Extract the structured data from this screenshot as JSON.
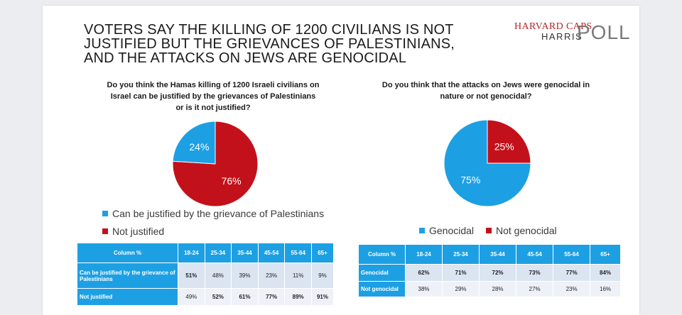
{
  "slide": {
    "title": "VOTERS SAY THE KILLING OF 1200 CIVILIANS IS NOT JUSTIFIED BUT THE GRIEVANCES OF PALESTINIANS, AND THE ATTACKS ON JEWS ARE GENOCIDAL",
    "logo": {
      "line1": "HARVARD CAPS",
      "line2": "HARRIS",
      "word": "POLL",
      "accent": "#b0272d"
    }
  },
  "colors": {
    "blue": "#1da0e3",
    "red": "#c3111b",
    "table_header": "#1da0e3",
    "table_row": "#dbe4f1"
  },
  "left": {
    "question": "Do you think the Hamas killing of 1200 Israeli civilians on Israel can be justified by the grievances of Palestinians or is it not justified?",
    "legend": [
      {
        "label": "Can be justified by the grievance of Palestinians",
        "color": "#1da0e3"
      },
      {
        "label": "Not justified",
        "color": "#c3111b"
      }
    ],
    "table": {
      "corner": "Column %",
      "headers": [
        "18-24",
        "25-34",
        "35-44",
        "45-54",
        "55-64",
        "65+"
      ],
      "rows": [
        {
          "label": "Can be justified by the grievance of Palestinians",
          "values": [
            "51%",
            "48%",
            "39%",
            "23%",
            "11%",
            "9%"
          ],
          "bold": [
            true,
            false,
            false,
            false,
            false,
            false
          ]
        },
        {
          "label": "Not justified",
          "values": [
            "49%",
            "52%",
            "61%",
            "77%",
            "89%",
            "91%"
          ],
          "bold": [
            false,
            true,
            true,
            true,
            true,
            true
          ]
        }
      ]
    }
  },
  "right": {
    "question": "Do you think that the attacks on Jews were genocidal in nature or not genocidal?",
    "legend": [
      {
        "label": "Genocidal",
        "color": "#1da0e3"
      },
      {
        "label": "Not genocidal",
        "color": "#c3111b"
      }
    ],
    "table": {
      "corner": "Column %",
      "headers": [
        "18-24",
        "25-34",
        "35-44",
        "45-54",
        "55-64",
        "65+"
      ],
      "rows": [
        {
          "label": "Genocidal",
          "values": [
            "62%",
            "71%",
            "72%",
            "73%",
            "77%",
            "84%"
          ],
          "bold": [
            true,
            true,
            true,
            true,
            true,
            true
          ]
        },
        {
          "label": "Not genocidal",
          "values": [
            "38%",
            "29%",
            "28%",
            "27%",
            "23%",
            "16%"
          ],
          "bold": [
            false,
            false,
            false,
            false,
            false,
            false
          ]
        }
      ]
    }
  },
  "chart_data": [
    {
      "type": "pie",
      "title": "Do you think the Hamas killing of 1200 Israeli civilians on Israel can be justified by the grievances of Palestinians or is it not justified?",
      "slices": [
        {
          "name": "Not justified",
          "value": 76,
          "label": "76%",
          "color": "#c3111b"
        },
        {
          "name": "Can be justified by the grievance of Palestinians",
          "value": 24,
          "label": "24%",
          "color": "#1da0e3"
        }
      ],
      "legend_position": "bottom"
    },
    {
      "type": "pie",
      "title": "Do you think that the attacks on Jews were genocidal in nature or not genocidal?",
      "slices": [
        {
          "name": "Genocidal",
          "value": 75,
          "label": "75%",
          "color": "#1da0e3"
        },
        {
          "name": "Not genocidal",
          "value": 25,
          "label": "25%",
          "color": "#c3111b"
        }
      ],
      "legend_position": "bottom"
    }
  ]
}
